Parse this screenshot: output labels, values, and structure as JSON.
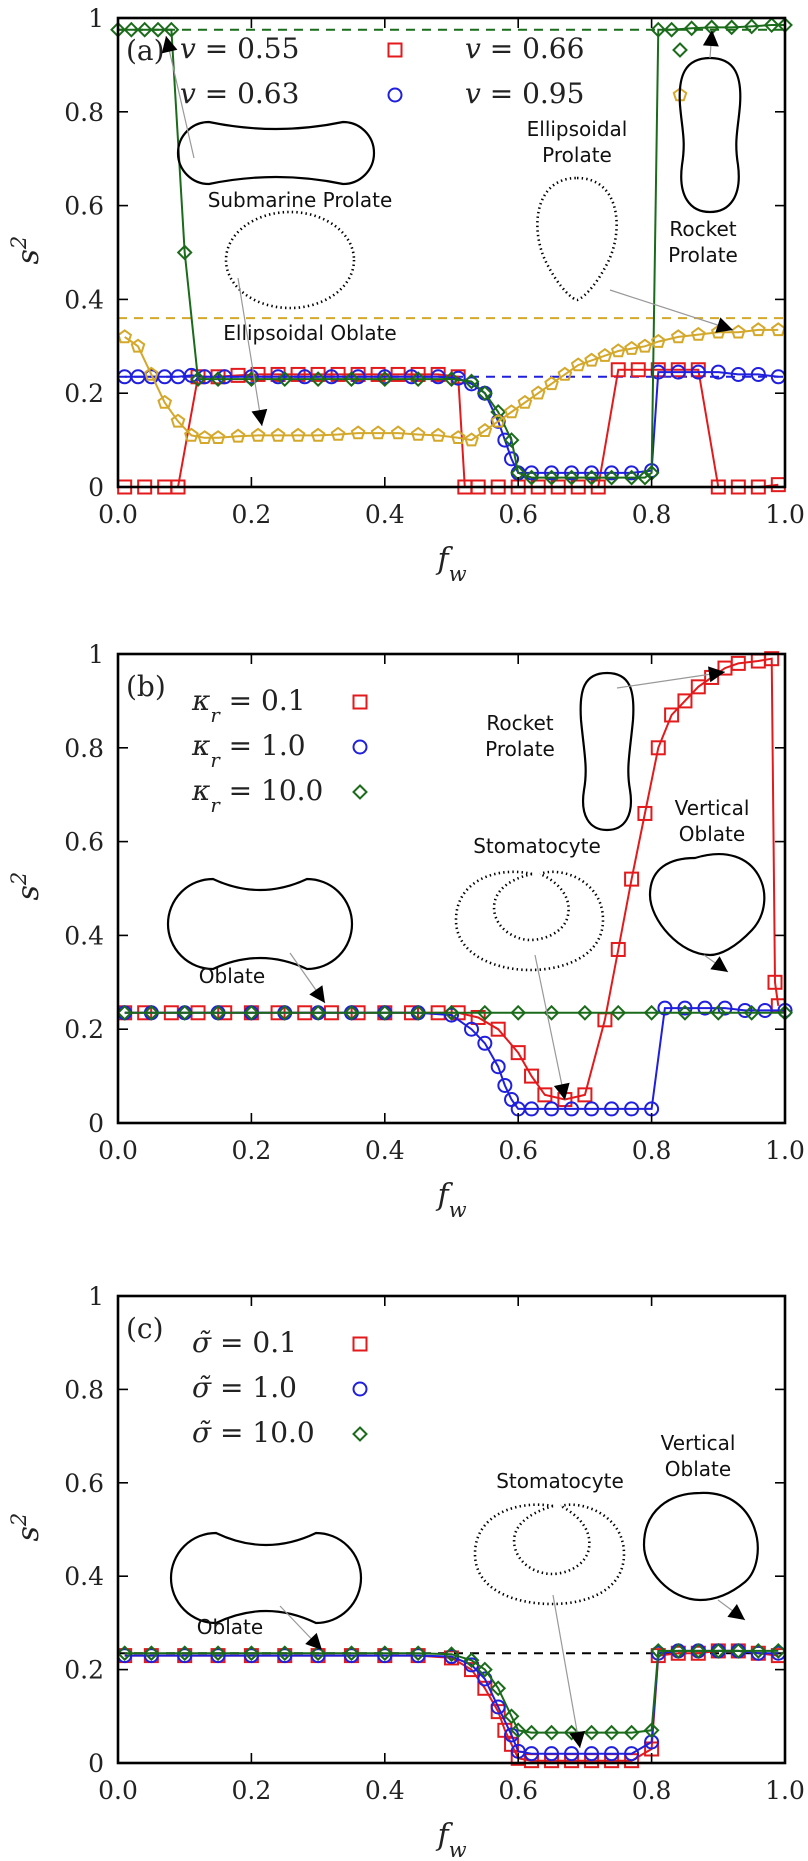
{
  "chart_data": [
    {
      "type": "line",
      "panel_label": "(a)",
      "xlabel": "f_w",
      "ylabel": "s^2",
      "xlim": [
        0.0,
        1.0
      ],
      "ylim": [
        0,
        1
      ],
      "x_ticks": [
        "0.0",
        "0.2",
        "0.4",
        "0.6",
        "0.8",
        "1.0"
      ],
      "y_ticks": [
        "0",
        "0.2",
        "0.4",
        "0.6",
        "0.8",
        "1"
      ],
      "legend": [
        {
          "text": "v = 0.55",
          "color": "#e31a1c",
          "marker": "square"
        },
        {
          "text": "v = 0.66",
          "color": "#1a6b1a",
          "marker": "diamond"
        },
        {
          "text": "v = 0.63",
          "color": "#1f1fdd",
          "marker": "circle"
        },
        {
          "text": "v = 0.95",
          "color": "#d4a82a",
          "marker": "pentagon"
        }
      ],
      "reference_lines": [
        {
          "y": 0.975,
          "color": "#1a6b1a"
        },
        {
          "y": 0.36,
          "color": "#d4a82a"
        },
        {
          "y": 0.235,
          "color": "#1f1fdd"
        }
      ],
      "series": [
        {
          "name": "v = 0.55",
          "color": "#e31a1c",
          "marker": "square",
          "x": [
            0.01,
            0.04,
            0.07,
            0.09,
            0.12,
            0.15,
            0.18,
            0.21,
            0.24,
            0.27,
            0.3,
            0.33,
            0.36,
            0.39,
            0.42,
            0.45,
            0.48,
            0.51,
            0.52,
            0.54,
            0.57,
            0.6,
            0.63,
            0.66,
            0.69,
            0.72,
            0.75,
            0.78,
            0.81,
            0.84,
            0.87,
            0.9,
            0.93,
            0.96,
            0.99
          ],
          "y": [
            0.0,
            0.0,
            0.0,
            0.0,
            0.235,
            0.235,
            0.238,
            0.24,
            0.24,
            0.24,
            0.24,
            0.24,
            0.24,
            0.24,
            0.24,
            0.24,
            0.24,
            0.235,
            0.0,
            0.0,
            0.0,
            0.0,
            0.0,
            0.0,
            0.0,
            0.0,
            0.25,
            0.25,
            0.25,
            0.25,
            0.25,
            0.0,
            0.0,
            0.0,
            0.005
          ]
        },
        {
          "name": "v = 0.63",
          "color": "#1f1fdd",
          "marker": "circle",
          "x": [
            0.01,
            0.03,
            0.05,
            0.07,
            0.09,
            0.11,
            0.13,
            0.16,
            0.2,
            0.24,
            0.28,
            0.32,
            0.36,
            0.4,
            0.44,
            0.48,
            0.51,
            0.53,
            0.55,
            0.57,
            0.58,
            0.59,
            0.6,
            0.62,
            0.65,
            0.68,
            0.71,
            0.74,
            0.77,
            0.8,
            0.81,
            0.84,
            0.87,
            0.9,
            0.93,
            0.96,
            0.99
          ],
          "y": [
            0.235,
            0.235,
            0.235,
            0.235,
            0.235,
            0.238,
            0.235,
            0.235,
            0.235,
            0.235,
            0.235,
            0.235,
            0.235,
            0.235,
            0.235,
            0.235,
            0.232,
            0.22,
            0.2,
            0.14,
            0.1,
            0.06,
            0.03,
            0.03,
            0.03,
            0.03,
            0.03,
            0.03,
            0.03,
            0.035,
            0.245,
            0.245,
            0.245,
            0.245,
            0.24,
            0.24,
            0.235
          ]
        },
        {
          "name": "v = 0.66",
          "color": "#1a6b1a",
          "marker": "diamond",
          "x": [
            0.0,
            0.02,
            0.04,
            0.06,
            0.08,
            0.1,
            0.12,
            0.15,
            0.2,
            0.25,
            0.3,
            0.35,
            0.4,
            0.45,
            0.5,
            0.53,
            0.55,
            0.57,
            0.59,
            0.6,
            0.62,
            0.65,
            0.68,
            0.71,
            0.74,
            0.77,
            0.79,
            0.8,
            0.81,
            0.83,
            0.86,
            0.89,
            0.92,
            0.95,
            0.98,
            1.0
          ],
          "y": [
            0.975,
            0.975,
            0.975,
            0.975,
            0.975,
            0.5,
            0.23,
            0.23,
            0.23,
            0.23,
            0.23,
            0.23,
            0.23,
            0.23,
            0.23,
            0.225,
            0.2,
            0.16,
            0.1,
            0.03,
            0.02,
            0.02,
            0.02,
            0.02,
            0.02,
            0.02,
            0.02,
            0.03,
            0.975,
            0.975,
            0.978,
            0.98,
            0.98,
            0.982,
            0.985,
            0.985
          ]
        },
        {
          "name": "v = 0.95",
          "color": "#d4a82a",
          "marker": "pentagon",
          "x": [
            0.01,
            0.03,
            0.05,
            0.07,
            0.09,
            0.11,
            0.13,
            0.15,
            0.18,
            0.21,
            0.24,
            0.27,
            0.3,
            0.33,
            0.36,
            0.39,
            0.42,
            0.45,
            0.48,
            0.51,
            0.53,
            0.55,
            0.57,
            0.59,
            0.61,
            0.63,
            0.65,
            0.67,
            0.69,
            0.71,
            0.73,
            0.75,
            0.77,
            0.79,
            0.81,
            0.84,
            0.87,
            0.9,
            0.93,
            0.96,
            0.99
          ],
          "y": [
            0.32,
            0.3,
            0.24,
            0.18,
            0.14,
            0.11,
            0.105,
            0.105,
            0.108,
            0.11,
            0.11,
            0.11,
            0.11,
            0.112,
            0.115,
            0.115,
            0.115,
            0.112,
            0.11,
            0.105,
            0.1,
            0.12,
            0.14,
            0.16,
            0.18,
            0.2,
            0.22,
            0.24,
            0.26,
            0.27,
            0.28,
            0.29,
            0.295,
            0.3,
            0.31,
            0.32,
            0.325,
            0.33,
            0.33,
            0.335,
            0.335
          ]
        }
      ],
      "annotations": [
        "Submarine Prolate",
        "Ellipsoidal Oblate",
        "Ellipsoidal Prolate",
        "Rocket Prolate"
      ]
    },
    {
      "type": "line",
      "panel_label": "(b)",
      "xlabel": "f_w",
      "ylabel": "s^2",
      "xlim": [
        0.0,
        1.0
      ],
      "ylim": [
        0,
        1
      ],
      "x_ticks": [
        "0.0",
        "0.2",
        "0.4",
        "0.6",
        "0.8",
        "1.0"
      ],
      "y_ticks": [
        "0",
        "0.2",
        "0.4",
        "0.6",
        "0.8",
        "1"
      ],
      "legend": [
        {
          "text": "κ_r = 0.1",
          "color": "#e31a1c",
          "marker": "square"
        },
        {
          "text": "κ_r = 1.0",
          "color": "#1f1fdd",
          "marker": "circle"
        },
        {
          "text": "κ_r = 10.0",
          "color": "#1a6b1a",
          "marker": "diamond"
        }
      ],
      "series": [
        {
          "name": "κ_r = 0.1",
          "color": "#e31a1c",
          "marker": "square",
          "x": [
            0.01,
            0.04,
            0.08,
            0.12,
            0.16,
            0.2,
            0.24,
            0.28,
            0.32,
            0.36,
            0.4,
            0.44,
            0.48,
            0.51,
            0.54,
            0.57,
            0.6,
            0.62,
            0.64,
            0.67,
            0.7,
            0.73,
            0.75,
            0.77,
            0.79,
            0.81,
            0.83,
            0.85,
            0.87,
            0.89,
            0.91,
            0.93,
            0.96,
            0.98,
            0.985,
            0.99
          ],
          "y": [
            0.235,
            0.235,
            0.235,
            0.235,
            0.235,
            0.235,
            0.235,
            0.235,
            0.235,
            0.235,
            0.235,
            0.235,
            0.235,
            0.235,
            0.225,
            0.2,
            0.15,
            0.1,
            0.06,
            0.05,
            0.06,
            0.22,
            0.37,
            0.52,
            0.66,
            0.8,
            0.87,
            0.9,
            0.93,
            0.95,
            0.97,
            0.98,
            0.985,
            0.99,
            0.3,
            0.25
          ]
        },
        {
          "name": "κ_r = 1.0",
          "color": "#1f1fdd",
          "marker": "circle",
          "x": [
            0.01,
            0.05,
            0.1,
            0.15,
            0.2,
            0.25,
            0.3,
            0.35,
            0.4,
            0.45,
            0.5,
            0.53,
            0.55,
            0.57,
            0.58,
            0.59,
            0.6,
            0.62,
            0.65,
            0.68,
            0.71,
            0.74,
            0.77,
            0.8,
            0.82,
            0.85,
            0.88,
            0.91,
            0.94,
            0.97,
            1.0
          ],
          "y": [
            0.235,
            0.235,
            0.235,
            0.235,
            0.235,
            0.235,
            0.235,
            0.235,
            0.235,
            0.235,
            0.23,
            0.2,
            0.17,
            0.12,
            0.08,
            0.05,
            0.03,
            0.03,
            0.03,
            0.03,
            0.03,
            0.03,
            0.03,
            0.03,
            0.245,
            0.245,
            0.245,
            0.245,
            0.24,
            0.24,
            0.24
          ]
        },
        {
          "name": "κ_r = 10.0",
          "color": "#1a6b1a",
          "marker": "diamond",
          "x": [
            0.01,
            0.05,
            0.1,
            0.15,
            0.2,
            0.25,
            0.3,
            0.35,
            0.4,
            0.45,
            0.5,
            0.55,
            0.6,
            0.65,
            0.7,
            0.75,
            0.8,
            0.85,
            0.9,
            0.95,
            1.0
          ],
          "y": [
            0.235,
            0.235,
            0.235,
            0.235,
            0.235,
            0.235,
            0.235,
            0.235,
            0.235,
            0.235,
            0.235,
            0.235,
            0.235,
            0.235,
            0.235,
            0.235,
            0.235,
            0.235,
            0.235,
            0.235,
            0.235
          ]
        }
      ],
      "annotations": [
        "Rocket Prolate",
        "Vertical Oblate",
        "Stomatocyte",
        "Oblate"
      ]
    },
    {
      "type": "line",
      "panel_label": "(c)",
      "xlabel": "f_w",
      "ylabel": "s^2",
      "xlim": [
        0.0,
        1.0
      ],
      "ylim": [
        0,
        1
      ],
      "x_ticks": [
        "0.0",
        "0.2",
        "0.4",
        "0.6",
        "0.8",
        "1.0"
      ],
      "y_ticks": [
        "0",
        "0.2",
        "0.4",
        "0.6",
        "0.8",
        "1"
      ],
      "legend": [
        {
          "text": "σ̃ = 0.1",
          "color": "#e31a1c",
          "marker": "square"
        },
        {
          "text": "σ̃ = 1.0",
          "color": "#1f1fdd",
          "marker": "circle"
        },
        {
          "text": "σ̃ = 10.0",
          "color": "#1a6b1a",
          "marker": "diamond"
        }
      ],
      "reference_lines": [
        {
          "y": 0.235,
          "color": "#000000"
        }
      ],
      "series": [
        {
          "name": "σ̃ = 0.1",
          "color": "#e31a1c",
          "marker": "square",
          "x": [
            0.01,
            0.05,
            0.1,
            0.15,
            0.2,
            0.25,
            0.3,
            0.35,
            0.4,
            0.45,
            0.5,
            0.53,
            0.55,
            0.57,
            0.58,
            0.59,
            0.6,
            0.62,
            0.65,
            0.68,
            0.71,
            0.74,
            0.77,
            0.8,
            0.81,
            0.84,
            0.87,
            0.9,
            0.93,
            0.96,
            0.99
          ],
          "y": [
            0.23,
            0.23,
            0.23,
            0.23,
            0.23,
            0.23,
            0.23,
            0.23,
            0.23,
            0.23,
            0.225,
            0.2,
            0.16,
            0.11,
            0.07,
            0.04,
            0.01,
            0.005,
            0.005,
            0.005,
            0.005,
            0.005,
            0.005,
            0.03,
            0.23,
            0.235,
            0.235,
            0.24,
            0.24,
            0.235,
            0.23
          ]
        },
        {
          "name": "σ̃ = 1.0",
          "color": "#1f1fdd",
          "marker": "circle",
          "x": [
            0.01,
            0.05,
            0.1,
            0.15,
            0.2,
            0.25,
            0.3,
            0.35,
            0.4,
            0.45,
            0.5,
            0.53,
            0.55,
            0.57,
            0.59,
            0.6,
            0.62,
            0.65,
            0.68,
            0.71,
            0.74,
            0.77,
            0.8,
            0.81,
            0.84,
            0.87,
            0.9,
            0.93,
            0.96,
            0.99
          ],
          "y": [
            0.23,
            0.23,
            0.23,
            0.23,
            0.23,
            0.23,
            0.23,
            0.23,
            0.23,
            0.23,
            0.228,
            0.21,
            0.18,
            0.12,
            0.06,
            0.025,
            0.02,
            0.02,
            0.02,
            0.02,
            0.02,
            0.02,
            0.045,
            0.235,
            0.24,
            0.24,
            0.24,
            0.24,
            0.235,
            0.235
          ]
        },
        {
          "name": "σ̃ = 10.0",
          "color": "#1a6b1a",
          "marker": "diamond",
          "x": [
            0.01,
            0.05,
            0.1,
            0.15,
            0.2,
            0.25,
            0.3,
            0.35,
            0.4,
            0.45,
            0.5,
            0.53,
            0.55,
            0.57,
            0.59,
            0.6,
            0.62,
            0.65,
            0.68,
            0.71,
            0.74,
            0.77,
            0.8,
            0.81,
            0.84,
            0.87,
            0.9,
            0.93,
            0.96,
            0.99
          ],
          "y": [
            0.235,
            0.235,
            0.235,
            0.235,
            0.235,
            0.235,
            0.235,
            0.235,
            0.235,
            0.235,
            0.233,
            0.22,
            0.2,
            0.16,
            0.1,
            0.07,
            0.065,
            0.065,
            0.065,
            0.065,
            0.065,
            0.065,
            0.07,
            0.24,
            0.24,
            0.24,
            0.24,
            0.24,
            0.24,
            0.24
          ]
        }
      ],
      "annotations": [
        "Stomatocyte",
        "Vertical Oblate",
        "Oblate"
      ]
    }
  ]
}
